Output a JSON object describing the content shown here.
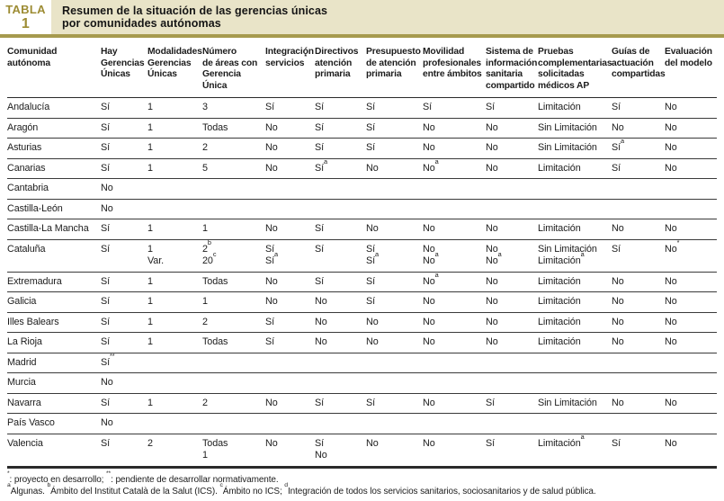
{
  "badge": {
    "label": "TABLA",
    "number": "1"
  },
  "title": "Resumen de la situación de las gerencias únicas\npor comunidades autónomas",
  "colors": {
    "accent_gold_bar": "#a69a4e",
    "badge_text_gold": "#9d8c34",
    "title_strip_bg": "#e9e4c8",
    "rule_dark": "#2a2a2a"
  },
  "table": {
    "columns": [
      "Comunidad autónoma",
      "Hay\nGerencias\nÚnicas",
      "Modalidades\nGerencias\nÚnicas",
      "Número\nde áreas con\nGerencia Única",
      "Integración\nservicios^*",
      "Directivos\natención\nprimaria",
      "Presupuesto\nde atención\nprimaria",
      "Movilidad\nprofesionales\nentre ámbitos",
      "Sistema de\ninformación\nsanitaria\ncompartido",
      "Pruebas\ncomplementarias\nsolicitadas\nmédicos AP",
      "Guías de\nactuación\ncompartidas",
      "Evaluación\ndel modelo"
    ],
    "rows": [
      [
        "Andalucía",
        "Sí",
        "1",
        "3",
        "Sí",
        "Sí",
        "Sí",
        "Sí",
        "Sí",
        "Limitación",
        "Sí",
        "No"
      ],
      [
        "Aragón",
        "Sí",
        "1",
        "Todas",
        "No",
        "Sí",
        "Sí",
        "No",
        "No",
        "Sin Limitación",
        "No",
        "No"
      ],
      [
        "Asturias",
        "Sí",
        "1",
        "2",
        "No",
        "Sí",
        "Sí",
        "No",
        "No",
        "Sin Limitación",
        "Sí^a",
        "No"
      ],
      [
        "Canarias",
        "Sí",
        "1",
        "5",
        "No",
        "Sí^a",
        "No",
        "No^a",
        "No",
        "Limitación",
        "Sí",
        "No"
      ],
      [
        "Cantabria",
        "No",
        "",
        "",
        "",
        "",
        "",
        "",
        "",
        "",
        "",
        ""
      ],
      [
        "Castilla-León",
        "No",
        "",
        "",
        "",
        "",
        "",
        "",
        "",
        "",
        "",
        ""
      ],
      [
        "Castilla-La Mancha",
        "Sí",
        "1",
        "1",
        "No",
        "Sí",
        "No",
        "No",
        "No",
        "Limitación",
        "No",
        "No"
      ],
      [
        "Cataluña",
        "Sí",
        "1\nVar.",
        "2^b\n20^c",
        "Sí\nSí^a",
        "Sí",
        "Sí\nSí^a",
        "No\nNo^a",
        "No\nNo^a",
        "Sin Limitación\nLimitación^a",
        "Sí",
        "No^*"
      ],
      [
        "Extremadura",
        "Sí",
        "1",
        "Todas",
        "No",
        "Sí",
        "Sí",
        "No^a",
        "No",
        "Limitación",
        "No",
        "No"
      ],
      [
        "Galicia",
        "Sí",
        "1",
        "1",
        "No",
        "No",
        "Sí",
        "No",
        "No",
        "Limitación",
        "No",
        "No"
      ],
      [
        "Illes Balears",
        "Sí",
        "1",
        "2",
        "Sí",
        "No",
        "No",
        "No",
        "No",
        "Limitación",
        "No",
        "No"
      ],
      [
        "La Rioja",
        "Sí",
        "1",
        "Todas",
        "Sí",
        "No",
        "No",
        "No",
        "No",
        "Limitación",
        "No",
        "No"
      ],
      [
        "Madrid",
        "Sí^**",
        "",
        "",
        "",
        "",
        "",
        "",
        "",
        "",
        "",
        ""
      ],
      [
        "Murcia",
        "No",
        "",
        "",
        "",
        "",
        "",
        "",
        "",
        "",
        "",
        ""
      ],
      [
        "Navarra",
        "Sí",
        "1",
        "2",
        "No",
        "Sí",
        "Sí",
        "No",
        "Sí",
        "Sin Limitación",
        "No",
        "No"
      ],
      [
        "País Vasco",
        "No",
        "",
        "",
        "",
        "",
        "",
        "",
        "",
        "",
        "",
        ""
      ],
      [
        "Valencia",
        "Sí",
        "2",
        "Todas\n1",
        "No",
        "Sí\nNo",
        "No",
        "No",
        "Sí",
        "Limitación^a",
        "Sí",
        "No"
      ]
    ]
  },
  "footnotes": [
    "^*: proyecto en desarrollo; ^**: pendiente de desarrollar normativamente.",
    "^aAlgunas. ^bÁmbito del Institut Català de la Salut (ICS). ^cÁmbito no ICS; ^dIntegración de todos los servicios sanitarios, sociosanitarios y de salud pública."
  ]
}
